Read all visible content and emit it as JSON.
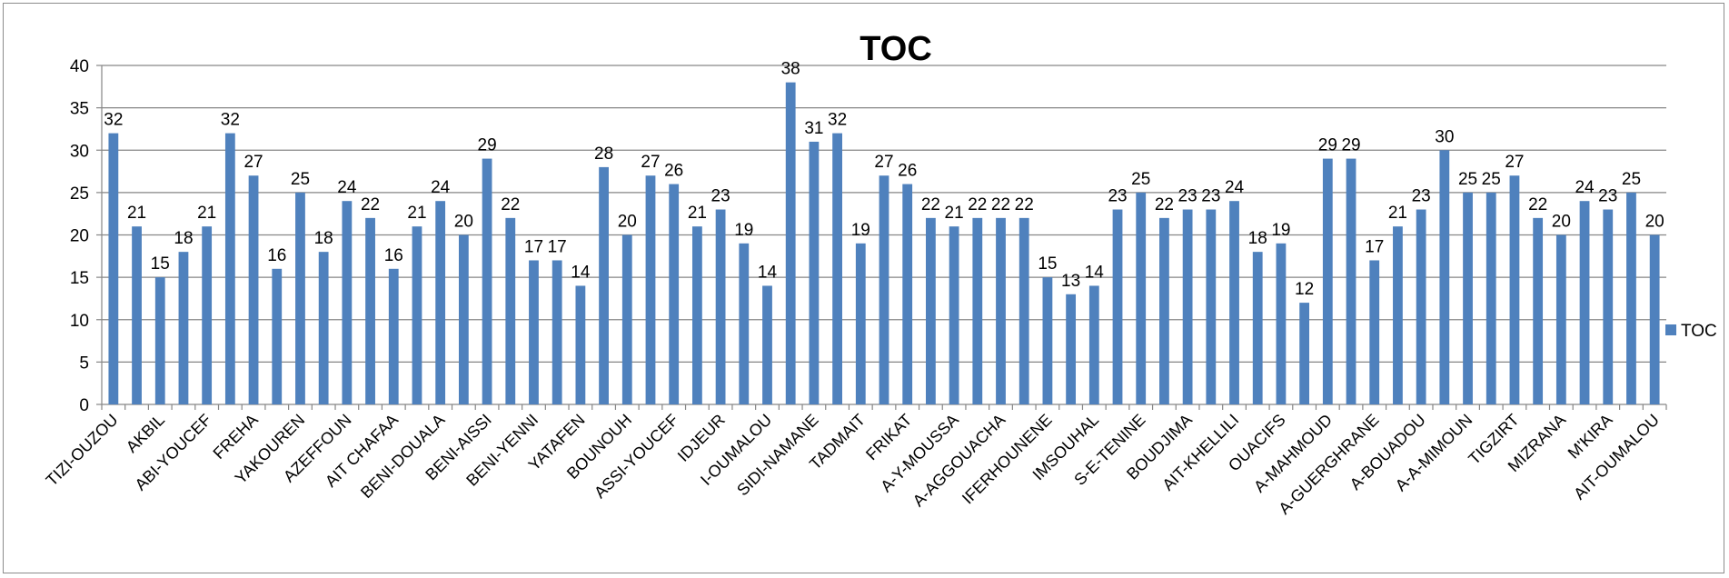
{
  "chart_data": {
    "type": "bar",
    "title": "TOC",
    "xlabel": "",
    "ylabel": "",
    "ylim": [
      0,
      40
    ],
    "ytick_step": 5,
    "grid": true,
    "legend": {
      "position": "right",
      "entries": [
        "TOC"
      ]
    },
    "bar_color": "#4f81bd",
    "grid_color": "#868686",
    "categories": [
      "TIZI-OUZOU",
      "",
      "AKBIL",
      "",
      "ABI-YOUCEF",
      "",
      "FREHA",
      "",
      "YAKOUREN",
      "",
      "AZEFFOUN",
      "",
      "AIT CHAFAA",
      "",
      "BENI-DOUALA",
      "",
      "BENI-AISSI",
      "",
      "BENI-YENNI",
      "",
      "YATAFEN",
      "",
      "BOUNOUH",
      "",
      "ASSI-YOUCEF",
      "",
      "IDJEUR",
      "",
      "I-OUMALOU",
      "",
      "SIDI-NAMANE",
      "",
      "TADMAIT",
      "",
      "FRIKAT",
      "",
      "A-Y-MOUSSA",
      "",
      "A-AGGOUACHA",
      "",
      "IFERHOUNENE",
      "",
      "IMSOUHAL",
      "",
      "S-E-TENINE",
      "",
      "BOUDJIMA",
      "",
      "AIT-KHELLILI",
      "",
      "OUACIFS",
      "",
      "A-MAHMOUD",
      "",
      "A-GUERGHRANE",
      "",
      "A-BOUADOU",
      "",
      "A-A-MIMOUN",
      "",
      "TIGZIRT",
      "",
      "MIZRANA",
      "",
      "M'KIRA",
      "",
      "AIT-OUMALOU"
    ],
    "series": [
      {
        "name": "TOC",
        "values": [
          32,
          21,
          15,
          18,
          21,
          32,
          27,
          16,
          25,
          18,
          24,
          22,
          16,
          21,
          24,
          20,
          29,
          22,
          17,
          17,
          14,
          28,
          20,
          27,
          26,
          21,
          23,
          19,
          14,
          38,
          31,
          32,
          19,
          27,
          26,
          22,
          21,
          22,
          22,
          22,
          15,
          13,
          14,
          23,
          25,
          22,
          23,
          23,
          24,
          18,
          19,
          12,
          29,
          29,
          17,
          21,
          23,
          30,
          25,
          25,
          27,
          22,
          20,
          24,
          23,
          25,
          20
        ]
      }
    ]
  }
}
